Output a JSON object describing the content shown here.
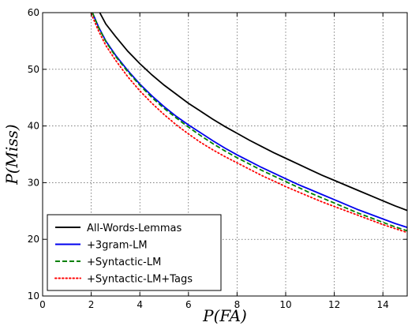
{
  "chart_data": {
    "type": "line",
    "xlabel": "P(FA)",
    "ylabel": "P(Miss)",
    "xlim": [
      0,
      15
    ],
    "ylim": [
      10,
      60
    ],
    "x_ticks": [
      0,
      2,
      4,
      6,
      8,
      10,
      12,
      14
    ],
    "y_ticks": [
      10,
      20,
      30,
      40,
      50,
      60
    ],
    "grid": true,
    "legend_position": "lower-left",
    "series": [
      {
        "name": "All-Words-Lemmas",
        "color": "#000000",
        "dash": "solid",
        "points": [
          [
            2.35,
            60
          ],
          [
            2.6,
            58
          ],
          [
            3,
            55.8
          ],
          [
            3.5,
            53.2
          ],
          [
            4,
            51
          ],
          [
            4.5,
            49
          ],
          [
            5,
            47.2
          ],
          [
            5.5,
            45.6
          ],
          [
            6,
            44
          ],
          [
            6.5,
            42.6
          ],
          [
            7,
            41.2
          ],
          [
            7.5,
            39.9
          ],
          [
            8,
            38.7
          ],
          [
            8.5,
            37.5
          ],
          [
            9,
            36.4
          ],
          [
            9.5,
            35.3
          ],
          [
            10,
            34.3
          ],
          [
            10.5,
            33.3
          ],
          [
            11,
            32.3
          ],
          [
            11.5,
            31.3
          ],
          [
            12,
            30.4
          ],
          [
            12.5,
            29.5
          ],
          [
            13,
            28.6
          ],
          [
            13.5,
            27.7
          ],
          [
            14,
            26.8
          ],
          [
            14.5,
            25.9
          ],
          [
            15,
            25.1
          ]
        ]
      },
      {
        "name": "+3gram-LM",
        "color": "#0000ee",
        "dash": "solid",
        "points": [
          [
            2.05,
            60
          ],
          [
            2.3,
            57.5
          ],
          [
            2.6,
            55
          ],
          [
            3,
            52.5
          ],
          [
            3.5,
            49.8
          ],
          [
            4,
            47.4
          ],
          [
            4.5,
            45.3
          ],
          [
            5,
            43.4
          ],
          [
            5.5,
            41.7
          ],
          [
            6,
            40.2
          ],
          [
            6.5,
            38.8
          ],
          [
            7,
            37.4
          ],
          [
            7.5,
            36.1
          ],
          [
            8,
            34.9
          ],
          [
            8.5,
            33.8
          ],
          [
            9,
            32.7
          ],
          [
            9.5,
            31.7
          ],
          [
            10,
            30.7
          ],
          [
            10.5,
            29.7
          ],
          [
            11,
            28.8
          ],
          [
            11.5,
            27.9
          ],
          [
            12,
            27
          ],
          [
            12.5,
            26.1
          ],
          [
            13,
            25.2
          ],
          [
            13.5,
            24.4
          ],
          [
            14,
            23.6
          ],
          [
            14.5,
            22.8
          ],
          [
            15,
            22.1
          ]
        ]
      },
      {
        "name": "+Syntactic-LM",
        "color": "#008000",
        "dash": "dashed",
        "points": [
          [
            2.05,
            60
          ],
          [
            2.3,
            57.4
          ],
          [
            2.6,
            54.9
          ],
          [
            3,
            52.3
          ],
          [
            3.5,
            49.6
          ],
          [
            4,
            47.2
          ],
          [
            4.5,
            45
          ],
          [
            5,
            43.1
          ],
          [
            5.5,
            41.4
          ],
          [
            6,
            39.8
          ],
          [
            6.5,
            38.3
          ],
          [
            7,
            36.9
          ],
          [
            7.5,
            35.6
          ],
          [
            8,
            34.4
          ],
          [
            8.5,
            33.3
          ],
          [
            9,
            32.2
          ],
          [
            9.5,
            31.2
          ],
          [
            10,
            30.2
          ],
          [
            10.5,
            29.2
          ],
          [
            11,
            28.2
          ],
          [
            11.5,
            27.3
          ],
          [
            12,
            26.4
          ],
          [
            12.5,
            25.5
          ],
          [
            13,
            24.6
          ],
          [
            13.5,
            23.8
          ],
          [
            14,
            23
          ],
          [
            14.5,
            22.2
          ],
          [
            15,
            21.5
          ]
        ]
      },
      {
        "name": "+Syntactic-LM+Tags",
        "color": "#ff0000",
        "dash": "dotted",
        "points": [
          [
            2,
            59.8
          ],
          [
            2.3,
            56.8
          ],
          [
            2.6,
            54.2
          ],
          [
            3,
            51.6
          ],
          [
            3.5,
            48.7
          ],
          [
            4,
            46.2
          ],
          [
            4.5,
            44
          ],
          [
            5,
            42
          ],
          [
            5.5,
            40.2
          ],
          [
            6,
            38.6
          ],
          [
            6.5,
            37.1
          ],
          [
            7,
            35.8
          ],
          [
            7.5,
            34.6
          ],
          [
            8,
            33.5
          ],
          [
            8.5,
            32.4
          ],
          [
            9,
            31.3
          ],
          [
            9.5,
            30.3
          ],
          [
            10,
            29.3
          ],
          [
            10.5,
            28.4
          ],
          [
            11,
            27.5
          ],
          [
            11.5,
            26.6
          ],
          [
            12,
            25.8
          ],
          [
            12.5,
            25
          ],
          [
            13,
            24.2
          ],
          [
            13.5,
            23.4
          ],
          [
            14,
            22.6
          ],
          [
            14.5,
            21.9
          ],
          [
            15,
            21.2
          ]
        ]
      }
    ]
  }
}
